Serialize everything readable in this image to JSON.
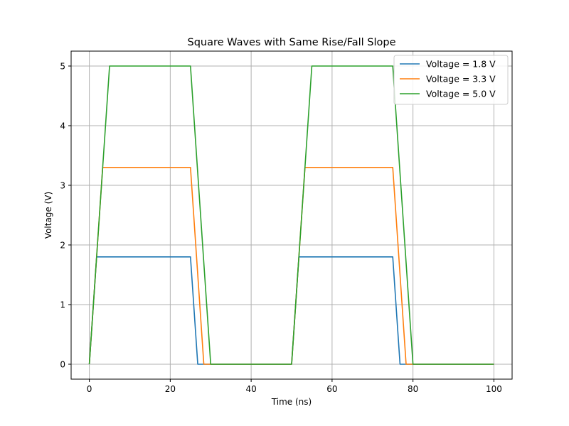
{
  "chart_data": {
    "type": "line",
    "title": "Square Waves with Same Rise/Fall Slope",
    "xlabel": "Time (ns)",
    "ylabel": "Voltage (V)",
    "xlim": [
      -4.5,
      104.5
    ],
    "ylim": [
      -0.25,
      5.25
    ],
    "xticks": [
      0,
      20,
      40,
      60,
      80,
      100
    ],
    "yticks": [
      0,
      1,
      2,
      3,
      4,
      5
    ],
    "grid": true,
    "legend_position": "upper right",
    "series": [
      {
        "name": "Voltage = 1.8 V",
        "color": "#1f77b4",
        "x": [
          0,
          1.8,
          25,
          26.8,
          50,
          51.8,
          75,
          76.8,
          100
        ],
        "y": [
          0,
          1.8,
          1.8,
          0,
          0,
          1.8,
          1.8,
          0,
          0
        ]
      },
      {
        "name": "Voltage = 3.3 V",
        "color": "#ff7f0e",
        "x": [
          0,
          3.3,
          25,
          28.3,
          50,
          53.3,
          75,
          78.3,
          100
        ],
        "y": [
          0,
          3.3,
          3.3,
          0,
          0,
          3.3,
          3.3,
          0,
          0
        ]
      },
      {
        "name": "Voltage = 5.0 V",
        "color": "#2ca02c",
        "x": [
          0,
          5,
          25,
          30,
          50,
          55,
          75,
          80,
          100
        ],
        "y": [
          0,
          5,
          5,
          0,
          0,
          5,
          5,
          0,
          0
        ]
      }
    ]
  }
}
